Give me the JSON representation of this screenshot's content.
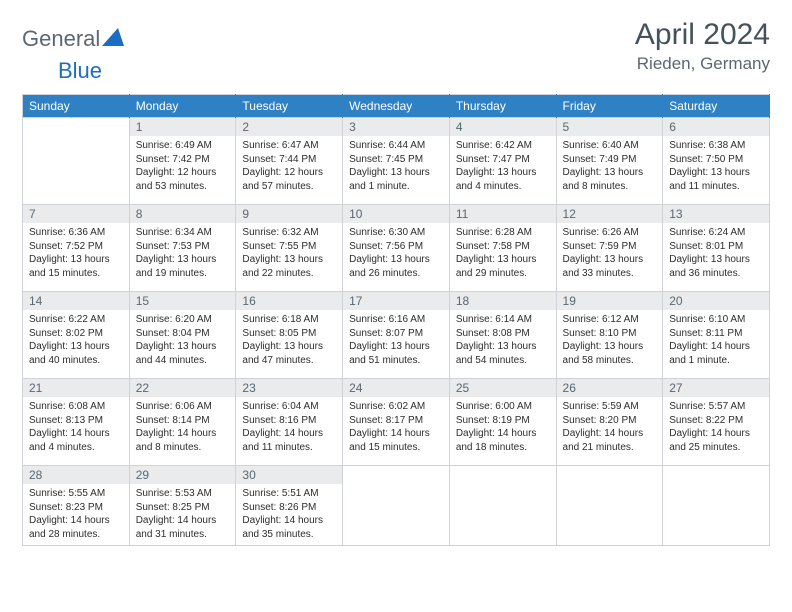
{
  "logo": {
    "word1": "General",
    "word2": "Blue"
  },
  "header": {
    "title": "April 2024",
    "location": "Rieden, Germany"
  },
  "colors": {
    "header_bg": "#2f81c5",
    "daynum_bg": "#e9ebed",
    "border": "#cfd3d7",
    "text": "#2d2d2d",
    "muted": "#5b6770"
  },
  "weekdays": [
    "Sunday",
    "Monday",
    "Tuesday",
    "Wednesday",
    "Thursday",
    "Friday",
    "Saturday"
  ],
  "weeks": [
    [
      null,
      {
        "n": "1",
        "sr": "6:49 AM",
        "ss": "7:42 PM",
        "dl": "12 hours and 53 minutes."
      },
      {
        "n": "2",
        "sr": "6:47 AM",
        "ss": "7:44 PM",
        "dl": "12 hours and 57 minutes."
      },
      {
        "n": "3",
        "sr": "6:44 AM",
        "ss": "7:45 PM",
        "dl": "13 hours and 1 minute."
      },
      {
        "n": "4",
        "sr": "6:42 AM",
        "ss": "7:47 PM",
        "dl": "13 hours and 4 minutes."
      },
      {
        "n": "5",
        "sr": "6:40 AM",
        "ss": "7:49 PM",
        "dl": "13 hours and 8 minutes."
      },
      {
        "n": "6",
        "sr": "6:38 AM",
        "ss": "7:50 PM",
        "dl": "13 hours and 11 minutes."
      }
    ],
    [
      {
        "n": "7",
        "sr": "6:36 AM",
        "ss": "7:52 PM",
        "dl": "13 hours and 15 minutes."
      },
      {
        "n": "8",
        "sr": "6:34 AM",
        "ss": "7:53 PM",
        "dl": "13 hours and 19 minutes."
      },
      {
        "n": "9",
        "sr": "6:32 AM",
        "ss": "7:55 PM",
        "dl": "13 hours and 22 minutes."
      },
      {
        "n": "10",
        "sr": "6:30 AM",
        "ss": "7:56 PM",
        "dl": "13 hours and 26 minutes."
      },
      {
        "n": "11",
        "sr": "6:28 AM",
        "ss": "7:58 PM",
        "dl": "13 hours and 29 minutes."
      },
      {
        "n": "12",
        "sr": "6:26 AM",
        "ss": "7:59 PM",
        "dl": "13 hours and 33 minutes."
      },
      {
        "n": "13",
        "sr": "6:24 AM",
        "ss": "8:01 PM",
        "dl": "13 hours and 36 minutes."
      }
    ],
    [
      {
        "n": "14",
        "sr": "6:22 AM",
        "ss": "8:02 PM",
        "dl": "13 hours and 40 minutes."
      },
      {
        "n": "15",
        "sr": "6:20 AM",
        "ss": "8:04 PM",
        "dl": "13 hours and 44 minutes."
      },
      {
        "n": "16",
        "sr": "6:18 AM",
        "ss": "8:05 PM",
        "dl": "13 hours and 47 minutes."
      },
      {
        "n": "17",
        "sr": "6:16 AM",
        "ss": "8:07 PM",
        "dl": "13 hours and 51 minutes."
      },
      {
        "n": "18",
        "sr": "6:14 AM",
        "ss": "8:08 PM",
        "dl": "13 hours and 54 minutes."
      },
      {
        "n": "19",
        "sr": "6:12 AM",
        "ss": "8:10 PM",
        "dl": "13 hours and 58 minutes."
      },
      {
        "n": "20",
        "sr": "6:10 AM",
        "ss": "8:11 PM",
        "dl": "14 hours and 1 minute."
      }
    ],
    [
      {
        "n": "21",
        "sr": "6:08 AM",
        "ss": "8:13 PM",
        "dl": "14 hours and 4 minutes."
      },
      {
        "n": "22",
        "sr": "6:06 AM",
        "ss": "8:14 PM",
        "dl": "14 hours and 8 minutes."
      },
      {
        "n": "23",
        "sr": "6:04 AM",
        "ss": "8:16 PM",
        "dl": "14 hours and 11 minutes."
      },
      {
        "n": "24",
        "sr": "6:02 AM",
        "ss": "8:17 PM",
        "dl": "14 hours and 15 minutes."
      },
      {
        "n": "25",
        "sr": "6:00 AM",
        "ss": "8:19 PM",
        "dl": "14 hours and 18 minutes."
      },
      {
        "n": "26",
        "sr": "5:59 AM",
        "ss": "8:20 PM",
        "dl": "14 hours and 21 minutes."
      },
      {
        "n": "27",
        "sr": "5:57 AM",
        "ss": "8:22 PM",
        "dl": "14 hours and 25 minutes."
      }
    ],
    [
      {
        "n": "28",
        "sr": "5:55 AM",
        "ss": "8:23 PM",
        "dl": "14 hours and 28 minutes."
      },
      {
        "n": "29",
        "sr": "5:53 AM",
        "ss": "8:25 PM",
        "dl": "14 hours and 31 minutes."
      },
      {
        "n": "30",
        "sr": "5:51 AM",
        "ss": "8:26 PM",
        "dl": "14 hours and 35 minutes."
      },
      null,
      null,
      null,
      null
    ]
  ],
  "labels": {
    "sunrise": "Sunrise:",
    "sunset": "Sunset:",
    "daylight": "Daylight:"
  }
}
